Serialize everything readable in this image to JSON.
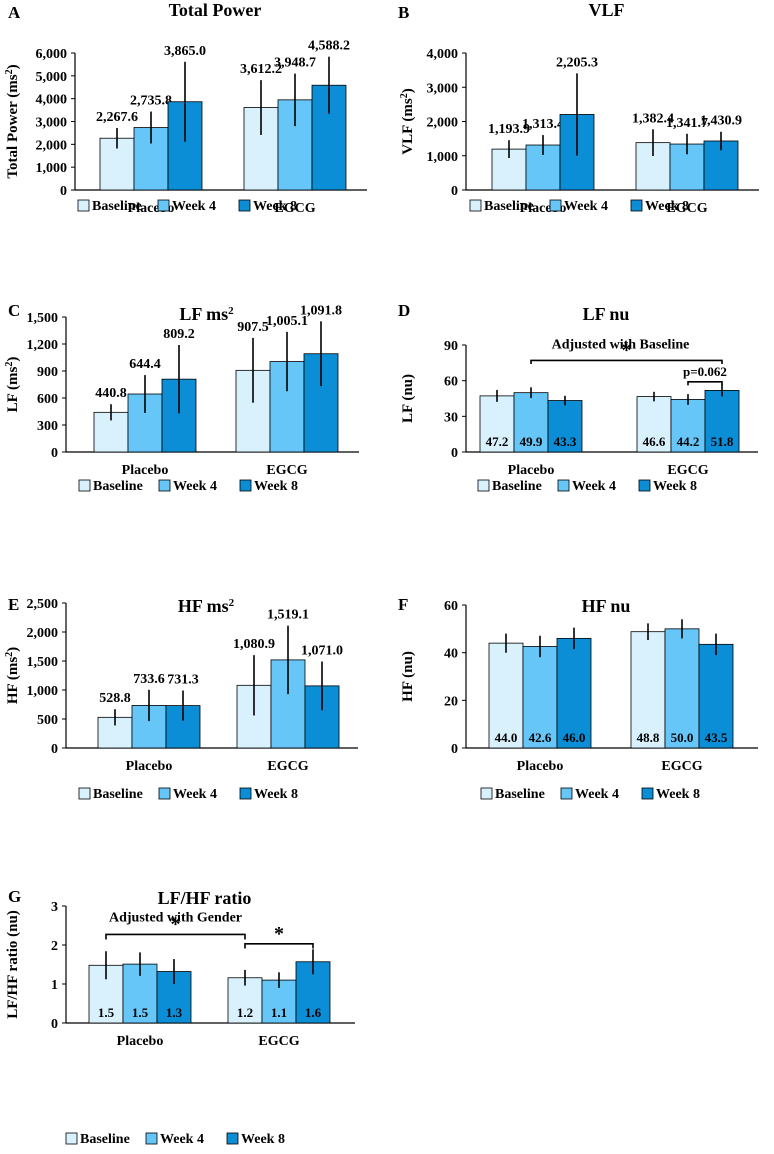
{
  "figure": {
    "legend": [
      "Baseline",
      "Week 4",
      "Week 8"
    ],
    "colors": [
      "#d9f1fd",
      "#66c6f8",
      "#0b8ed6"
    ],
    "groups": [
      "Placebo",
      "EGCG"
    ]
  },
  "chart_data": [
    {
      "panel": "A",
      "type": "bar",
      "title": "Total Power",
      "ylabel_main": "Total Power (ms",
      "ylabel_sup": "2",
      "ylabel_end": ")",
      "title_sup": "",
      "ylim": [
        0,
        6000
      ],
      "ticks": [
        0,
        1000,
        2000,
        3000,
        4000,
        5000,
        6000
      ],
      "tick_labels": [
        "0",
        "1,000",
        "2,000",
        "3,000",
        "4,000",
        "5,000",
        "6,000"
      ],
      "categories": [
        "Placebo",
        "EGCG"
      ],
      "series": [
        {
          "name": "Baseline",
          "values": [
            2267.6,
            3612.2
          ],
          "errors": [
            450,
            1200
          ],
          "labels": [
            "2,267.6",
            "3,612.2"
          ]
        },
        {
          "name": "Week 4",
          "values": [
            2735.8,
            3948.7
          ],
          "errors": [
            700,
            1150
          ],
          "labels": [
            "2,735.8",
            "3,948.7"
          ]
        },
        {
          "name": "Week 8",
          "values": [
            3865.0,
            4588.2
          ],
          "errors": [
            1750,
            1250
          ],
          "labels": [
            "3,865.0",
            "4,588.2"
          ]
        }
      ],
      "label_position": "above"
    },
    {
      "panel": "B",
      "type": "bar",
      "title": "VLF",
      "ylabel_main": "VLF (ms",
      "ylabel_sup": "2",
      "ylabel_end": ")",
      "title_sup": "",
      "ylim": [
        0,
        4000
      ],
      "ticks": [
        0,
        1000,
        2000,
        3000,
        4000
      ],
      "tick_labels": [
        "0",
        "1,000",
        "2,000",
        "3,000",
        "4,000"
      ],
      "categories": [
        "Placebo",
        "EGCG"
      ],
      "series": [
        {
          "name": "Baseline",
          "values": [
            1193.9,
            1382.4
          ],
          "errors": [
            260,
            390
          ],
          "labels": [
            "1,193.9",
            "1,382.4"
          ]
        },
        {
          "name": "Week 4",
          "values": [
            1313.4,
            1341.7
          ],
          "errors": [
            290,
            300
          ],
          "labels": [
            "1,313.4",
            "1,341.7"
          ]
        },
        {
          "name": "Week 8",
          "values": [
            2205.3,
            1430.9
          ],
          "errors": [
            1200,
            270
          ],
          "labels": [
            "2,205.3",
            "1,430.9"
          ]
        }
      ],
      "label_position": "above"
    },
    {
      "panel": "C",
      "type": "bar",
      "title": "LF ms",
      "title_sup": "2",
      "ylabel_main": "LF (ms",
      "ylabel_sup": "2",
      "ylabel_end": ")",
      "ylim": [
        0,
        1500
      ],
      "ticks": [
        0,
        300,
        600,
        900,
        1200,
        1500
      ],
      "tick_labels": [
        "0",
        "300",
        "600",
        "900",
        "1,200",
        "1,500"
      ],
      "categories": [
        "Placebo",
        "EGCG"
      ],
      "series": [
        {
          "name": "Baseline",
          "values": [
            440.8,
            907.5
          ],
          "errors": [
            90,
            360
          ],
          "labels": [
            "440.8",
            "907.5"
          ]
        },
        {
          "name": "Week 4",
          "values": [
            644.4,
            1005.1
          ],
          "errors": [
            210,
            330
          ],
          "labels": [
            "644.4",
            "1,005.1"
          ]
        },
        {
          "name": "Week 8",
          "values": [
            809.2,
            1091.8
          ],
          "errors": [
            380,
            360
          ],
          "labels": [
            "809.2",
            "1,091.8"
          ]
        }
      ],
      "label_position": "above"
    },
    {
      "panel": "D",
      "type": "bar",
      "title": "LF nu",
      "title_sup": "",
      "ylabel_main": "LF (nu)",
      "ylabel_sup": "",
      "ylabel_end": "",
      "ylim": [
        0,
        90
      ],
      "ticks": [
        0,
        30,
        60,
        90
      ],
      "tick_labels": [
        "0",
        "30",
        "60",
        "90"
      ],
      "categories": [
        "Placebo",
        "EGCG"
      ],
      "series": [
        {
          "name": "Baseline",
          "values": [
            47.2,
            46.6
          ],
          "errors": [
            5,
            4
          ],
          "labels": [
            "47.2",
            "46.6"
          ]
        },
        {
          "name": "Week 4",
          "values": [
            49.9,
            44.2
          ],
          "errors": [
            4.5,
            4.5
          ],
          "labels": [
            "49.9",
            "44.2"
          ]
        },
        {
          "name": "Week 8",
          "values": [
            43.3,
            51.8
          ],
          "errors": [
            4,
            5
          ],
          "labels": [
            "43.3",
            "51.8"
          ]
        }
      ],
      "label_position": "inside",
      "annotations": [
        {
          "kind": "bracket",
          "from": [
            0,
            1
          ],
          "to": [
            1,
            2
          ],
          "level": 77,
          "drop": 3,
          "text": "*",
          "note": "Adjusted with Baseline",
          "note_level": 87
        },
        {
          "kind": "bracket",
          "from": [
            1,
            1
          ],
          "to": [
            1,
            2
          ],
          "level": 59,
          "drop": 3,
          "text": "p=0.062",
          "note": "",
          "note_level": 0
        }
      ]
    },
    {
      "panel": "E",
      "type": "bar",
      "title": "HF ms",
      "title_sup": "2",
      "ylabel_main": "HF (ms",
      "ylabel_sup": "2",
      "ylabel_end": ")",
      "ylim": [
        0,
        2500
      ],
      "ticks": [
        0,
        500,
        1000,
        1500,
        2000,
        2500
      ],
      "tick_labels": [
        "0",
        "500",
        "1,000",
        "1,500",
        "2,000",
        "2,500"
      ],
      "categories": [
        "Placebo",
        "EGCG"
      ],
      "series": [
        {
          "name": "Baseline",
          "values": [
            528.8,
            1080.9
          ],
          "errors": [
            140,
            520
          ],
          "labels": [
            "528.8",
            "1,080.9"
          ]
        },
        {
          "name": "Week 4",
          "values": [
            733.6,
            1519.1
          ],
          "errors": [
            270,
            590
          ],
          "labels": [
            "733.6",
            "1,519.1"
          ]
        },
        {
          "name": "Week 8",
          "values": [
            731.3,
            1071.0
          ],
          "errors": [
            260,
            420
          ],
          "labels": [
            "731.3",
            "1,071.0"
          ]
        }
      ],
      "label_position": "above"
    },
    {
      "panel": "F",
      "type": "bar",
      "title": "HF nu",
      "title_sup": "",
      "ylabel_main": "HF (nu)",
      "ylabel_sup": "",
      "ylabel_end": "",
      "ylim": [
        0,
        60
      ],
      "ticks": [
        0,
        20,
        40,
        60
      ],
      "tick_labels": [
        "0",
        "20",
        "40",
        "60"
      ],
      "categories": [
        "Placebo",
        "EGCG"
      ],
      "series": [
        {
          "name": "Baseline",
          "values": [
            44.0,
            48.8
          ],
          "errors": [
            4,
            3.5
          ],
          "labels": [
            "44.0",
            "48.8"
          ]
        },
        {
          "name": "Week 4",
          "values": [
            42.6,
            50.0
          ],
          "errors": [
            4.5,
            4
          ],
          "labels": [
            "42.6",
            "50.0"
          ]
        },
        {
          "name": "Week 8",
          "values": [
            46.0,
            43.5
          ],
          "errors": [
            4.5,
            4.5
          ],
          "labels": [
            "46.0",
            "43.5"
          ]
        }
      ],
      "label_position": "inside"
    },
    {
      "panel": "G",
      "type": "bar",
      "title": "LF/HF ratio",
      "title_sup": "",
      "ylabel_main": "LF/HF ratio (nu)",
      "ylabel_sup": "",
      "ylabel_end": "",
      "ylim": [
        0,
        3
      ],
      "ticks": [
        0,
        1,
        2,
        3
      ],
      "tick_labels": [
        "0",
        "1",
        "2",
        "3"
      ],
      "categories": [
        "Placebo",
        "EGCG"
      ],
      "series": [
        {
          "name": "Baseline",
          "values": [
            1.48,
            1.16
          ],
          "errors": [
            0.36,
            0.2
          ],
          "labels": [
            "1.5",
            "1.2"
          ]
        },
        {
          "name": "Week 4",
          "values": [
            1.51,
            1.1
          ],
          "errors": [
            0.3,
            0.2
          ],
          "labels": [
            "1.5",
            "1.1"
          ]
        },
        {
          "name": "Week 8",
          "values": [
            1.32,
            1.57
          ],
          "errors": [
            0.32,
            0.32
          ],
          "labels": [
            "1.3",
            "1.6"
          ]
        }
      ],
      "label_position": "inside",
      "annotations": [
        {
          "kind": "bracket",
          "from": [
            0,
            0
          ],
          "to": [
            1,
            0
          ],
          "level": 2.27,
          "drop": 0.13,
          "text": "*",
          "note": "Adjusted with Gender",
          "note_level": 2.6
        },
        {
          "kind": "bracket",
          "from": [
            1,
            0
          ],
          "to": [
            1,
            2
          ],
          "level": 2.03,
          "drop": 0.12,
          "text": "*",
          "note": "",
          "note_level": 0
        }
      ]
    }
  ]
}
